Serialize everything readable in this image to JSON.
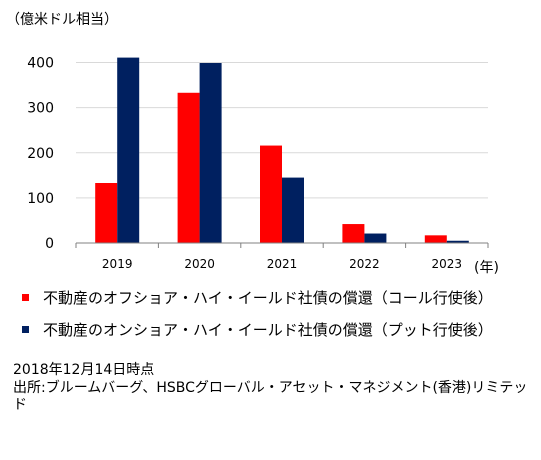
{
  "chart_data": {
    "type": "bar",
    "unit_label": "（億米ドル相当）",
    "xlabel_suffix": "(年)",
    "categories": [
      "2019",
      "2020",
      "2021",
      "2022",
      "2023"
    ],
    "y_ticks": [
      "0",
      "100",
      "200",
      "300",
      "400"
    ],
    "ylim": [
      0,
      450
    ],
    "grid": true,
    "legend_position": "bottom",
    "series": [
      {
        "name": "不動産のオフショア・ハイ・イールド社債の償還（コール行使後）",
        "color": "#ff0000",
        "values": [
          133,
          333,
          216,
          42,
          17
        ]
      },
      {
        "name": "不動産のオンショア・ハイ・イールド社債の償還（プット行使後）",
        "color": "#002060",
        "values": [
          411,
          399,
          145,
          21,
          5
        ]
      }
    ]
  },
  "notes": {
    "date": "2018年12月14日時点",
    "source": "出所:ブルームバーグ、HSBCグローバル・アセット・マネジメント(香港)リミテッド"
  }
}
